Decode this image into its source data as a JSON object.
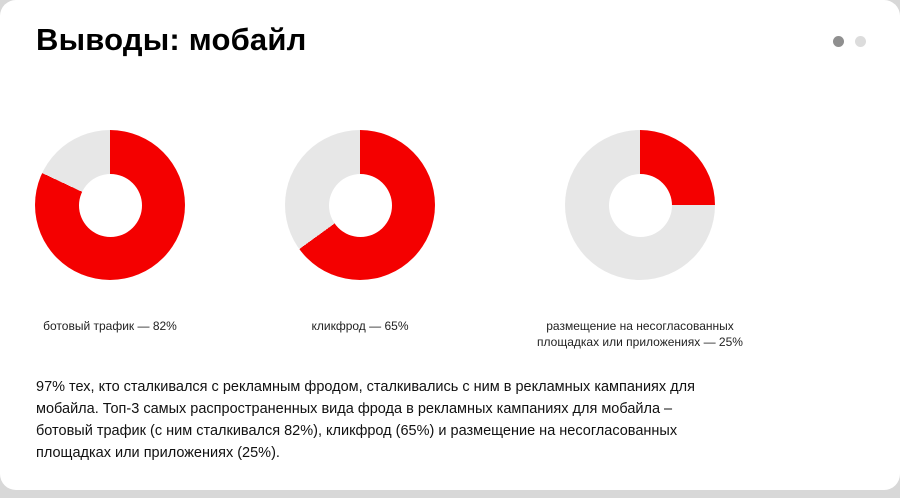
{
  "slide": {
    "title": "Выводы: мобайл",
    "body_text": "97% тех, кто сталкивался с рекламным фродом, сталкивались с ним в рекламных кампаниях для мобайла. Топ-3 самых распространенных вида фрода в рекламных кампаниях для мобайла – ботовый трафик (с ним сталкивался 82%), кликфрод (65%) и размещение на несогласованных площадках или приложениях (25%)."
  },
  "pagination": {
    "dot_count": 2,
    "active_index": 0
  },
  "colors": {
    "accent_red": "#f40000",
    "track_gray": "#e7e7e7",
    "dot_active": "#8f8f8f",
    "dot_inactive": "#dcdcdc",
    "background": "#d8d8d8",
    "card": "#ffffff"
  },
  "chart_data": [
    {
      "type": "pie",
      "style": "donut",
      "series_name": "ботовый трафик",
      "value_percent": 82,
      "remainder_percent": 18,
      "start_angle_deg": 0,
      "direction": "clockwise",
      "label": "ботовый трафик — 82%"
    },
    {
      "type": "pie",
      "style": "donut",
      "series_name": "кликфрод",
      "value_percent": 65,
      "remainder_percent": 35,
      "start_angle_deg": 0,
      "direction": "clockwise",
      "label": "кликфрод — 65%"
    },
    {
      "type": "pie",
      "style": "donut",
      "series_name": "размещение на несогласованных площадках или приложениях",
      "value_percent": 25,
      "remainder_percent": 75,
      "start_angle_deg": 0,
      "direction": "clockwise",
      "label": "размещение на несогласованных площадках или приложениях — 25%"
    }
  ]
}
